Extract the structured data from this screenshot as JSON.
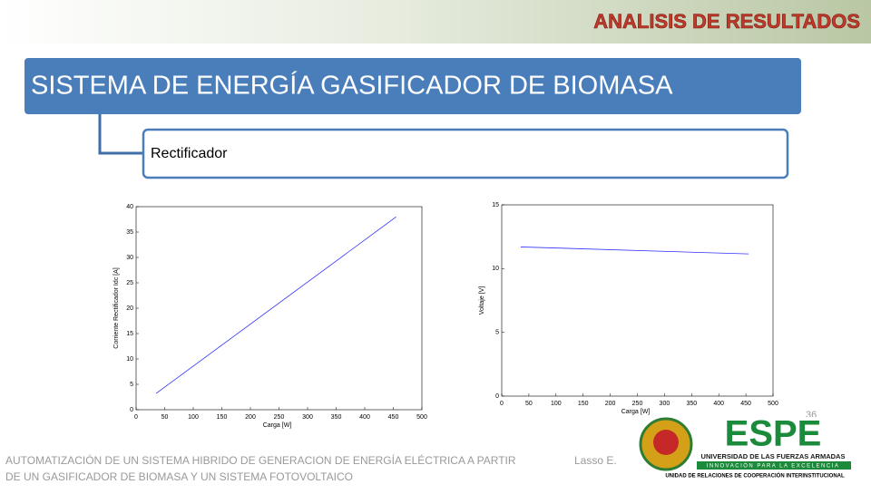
{
  "header": {
    "title": "ANALISIS DE RESULTADOS"
  },
  "banner": {
    "title": "SISTEMA DE ENERGÍA GASIFICADOR DE BIOMASA",
    "subtitle": "Rectificador"
  },
  "chart_data": [
    {
      "type": "line",
      "xlabel": "Carga [W]",
      "ylabel": "Corriente Rectificador Idc [A]",
      "xlim": [
        0,
        500
      ],
      "xticks": [
        0,
        50,
        100,
        150,
        200,
        250,
        300,
        350,
        400,
        450,
        500
      ],
      "ylim": [
        0,
        40
      ],
      "yticks": [
        0,
        5,
        10,
        15,
        20,
        25,
        30,
        35,
        40
      ],
      "series": [
        {
          "color": "#3333ff",
          "x": [
            35,
            455
          ],
          "values": [
            3.2,
            38
          ]
        }
      ]
    },
    {
      "type": "line",
      "xlabel": "Carga [W]",
      "ylabel": "Voltaje [V]",
      "xlim": [
        0,
        500
      ],
      "xticks": [
        0,
        50,
        100,
        150,
        200,
        250,
        300,
        350,
        400,
        450,
        500
      ],
      "ylim": [
        0,
        15
      ],
      "yticks": [
        0,
        5,
        10,
        15
      ],
      "series": [
        {
          "color": "#3333ff",
          "x": [
            35,
            455
          ],
          "values": [
            11.7,
            11.15
          ]
        }
      ]
    }
  ],
  "footer": {
    "text": "AUTOMATIZACIÓN DE UN SISTEMA HIBRIDO DE GENERACION DE ENERGÍA ELÉCTRICA A PARTIR DE UN GASIFICADOR DE BIOMASA Y UN SISTEMA FOTOVOLTAICO",
    "author": "Lasso E.",
    "page": "36"
  },
  "logo": {
    "name": "ESPE",
    "line1": "UNIVERSIDAD DE LAS FUERZAS ARMADAS",
    "line2": "INNOVACIÓN PARA LA EXCELENCIA",
    "line3": "UNIDAD DE RELACIONES DE COOPERACIÓN INTERINSTITUCIONAL"
  }
}
